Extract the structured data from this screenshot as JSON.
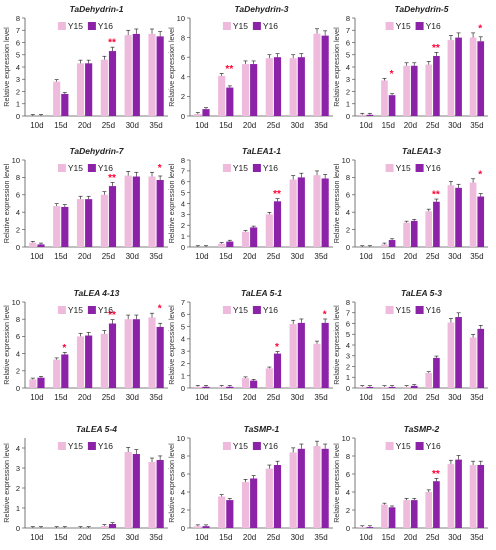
{
  "colors": {
    "y15": "#eebbdd",
    "y16": "#8b22a8",
    "sig": "#ff0033",
    "axis": "#555555"
  },
  "legend": {
    "y15": "Y15",
    "y16": "Y16"
  },
  "chart_data": [
    {
      "type": "bar",
      "title": "TaDehydrin-1",
      "ylabel": "Relative expression level",
      "categories": [
        "10d",
        "15d",
        "20d",
        "25d",
        "30d",
        "35d"
      ],
      "ylim": [
        0,
        8
      ],
      "yticks": [
        0,
        1,
        2,
        3,
        4,
        5,
        6,
        7,
        8
      ],
      "series": [
        {
          "name": "Y15",
          "values": [
            0,
            2.8,
            4.3,
            4.6,
            6.6,
            6.7
          ]
        },
        {
          "name": "Y16",
          "values": [
            0,
            1.8,
            4.3,
            5.3,
            6.7,
            6.5
          ]
        }
      ],
      "significance": [
        {
          "index": 3,
          "label": "**"
        }
      ]
    },
    {
      "type": "bar",
      "title": "TaDehydrin-3",
      "ylabel": "Relative expression level",
      "categories": [
        "10d",
        "15d",
        "20d",
        "25d",
        "30d",
        "35d"
      ],
      "ylim": [
        0,
        10
      ],
      "yticks": [
        0,
        2,
        4,
        6,
        8,
        10
      ],
      "series": [
        {
          "name": "Y15",
          "values": [
            0.2,
            4.1,
            5.3,
            5.9,
            5.9,
            8.4
          ]
        },
        {
          "name": "Y16",
          "values": [
            0.7,
            2.9,
            5.3,
            6.0,
            6.0,
            8.2
          ]
        }
      ],
      "significance": [
        {
          "index": 1,
          "label": "**"
        }
      ]
    },
    {
      "type": "bar",
      "title": "TaDehydrin-5",
      "ylabel": "Relative expression level",
      "categories": [
        "10d",
        "15d",
        "20d",
        "25d",
        "30d",
        "35d"
      ],
      "ylim": [
        0,
        8
      ],
      "yticks": [
        0,
        1,
        2,
        3,
        4,
        5,
        6,
        7,
        8
      ],
      "series": [
        {
          "name": "Y15",
          "values": [
            0.1,
            2.9,
            4.1,
            4.2,
            6.2,
            6.4
          ]
        },
        {
          "name": "Y16",
          "values": [
            0.1,
            1.7,
            4.1,
            4.9,
            6.4,
            6.1
          ]
        }
      ],
      "significance": [
        {
          "index": 1,
          "label": "*"
        },
        {
          "index": 3,
          "label": "**"
        },
        {
          "index": 5,
          "label": "*"
        }
      ]
    },
    {
      "type": "bar",
      "title": "TaDehydrin-7",
      "ylabel": "Relative expression level",
      "categories": [
        "10d",
        "15d",
        "20d",
        "25d",
        "30d",
        "35d"
      ],
      "ylim": [
        0,
        10
      ],
      "yticks": [
        0,
        2,
        4,
        6,
        8,
        10
      ],
      "series": [
        {
          "name": "Y15",
          "values": [
            0.5,
            4.7,
            5.5,
            6.0,
            8.2,
            8.1
          ]
        },
        {
          "name": "Y16",
          "values": [
            0.3,
            4.6,
            5.5,
            7.0,
            8.1,
            7.7
          ]
        }
      ],
      "significance": [
        {
          "index": 3,
          "label": "**"
        },
        {
          "index": 5,
          "label": "*"
        }
      ]
    },
    {
      "type": "bar",
      "title": "TaLEA1-1",
      "ylabel": "Relative expression level",
      "categories": [
        "10d",
        "15d",
        "20d",
        "25d",
        "30d",
        "35d"
      ],
      "ylim": [
        0,
        8
      ],
      "yticks": [
        0,
        1,
        2,
        3,
        4,
        5,
        6,
        7,
        8
      ],
      "series": [
        {
          "name": "Y15",
          "values": [
            0,
            0.3,
            1.4,
            3.0,
            6.2,
            6.6
          ]
        },
        {
          "name": "Y16",
          "values": [
            0,
            0.5,
            1.8,
            4.2,
            6.4,
            6.3
          ]
        }
      ],
      "significance": [
        {
          "index": 3,
          "label": "**"
        }
      ]
    },
    {
      "type": "bar",
      "title": "TaLEA1-3",
      "ylabel": "Relative expression level",
      "categories": [
        "10d",
        "15d",
        "20d",
        "25d",
        "30d",
        "35d"
      ],
      "ylim": [
        0,
        10
      ],
      "yticks": [
        0,
        2,
        4,
        6,
        8,
        10
      ],
      "series": [
        {
          "name": "Y15",
          "values": [
            0,
            0.3,
            2.8,
            4.1,
            7.1,
            7.4
          ]
        },
        {
          "name": "Y16",
          "values": [
            0,
            0.8,
            3.0,
            5.2,
            6.8,
            5.8
          ]
        }
      ],
      "significance": [
        {
          "index": 3,
          "label": "**"
        },
        {
          "index": 5,
          "label": "*"
        }
      ]
    },
    {
      "type": "bar",
      "title": "TaLEA 4-13",
      "ylabel": "Relative expression level",
      "categories": [
        "10d",
        "15d",
        "20d",
        "25d",
        "30d",
        "35d"
      ],
      "ylim": [
        0,
        10
      ],
      "yticks": [
        0,
        2,
        4,
        6,
        8,
        10
      ],
      "series": [
        {
          "name": "Y15",
          "values": [
            1.0,
            3.3,
            6.0,
            6.3,
            8.0,
            8.2
          ]
        },
        {
          "name": "Y16",
          "values": [
            1.2,
            3.9,
            6.1,
            7.5,
            8.0,
            7.1
          ]
        }
      ],
      "significance": [
        {
          "index": 1,
          "label": "*"
        },
        {
          "index": 3,
          "label": "**"
        },
        {
          "index": 5,
          "label": "*"
        }
      ]
    },
    {
      "type": "bar",
      "title": "TaLEA 5-1",
      "ylabel": "Relative expression level",
      "categories": [
        "10d",
        "15d",
        "20d",
        "25d",
        "30d",
        "35d"
      ],
      "ylim": [
        0,
        7
      ],
      "yticks": [
        0,
        1,
        2,
        3,
        4,
        5,
        6,
        7
      ],
      "series": [
        {
          "name": "Y15",
          "values": [
            0.1,
            0.1,
            0.8,
            1.6,
            5.2,
            3.6
          ]
        },
        {
          "name": "Y16",
          "values": [
            0.1,
            0.1,
            0.6,
            2.8,
            5.3,
            5.3
          ]
        }
      ],
      "significance": [
        {
          "index": 3,
          "label": "*"
        },
        {
          "index": 5,
          "label": "*"
        }
      ]
    },
    {
      "type": "bar",
      "title": "TaLEA 5-3",
      "ylabel": "Relative expression level",
      "categories": [
        "10d",
        "15d",
        "20d",
        "25d",
        "30d",
        "35d"
      ],
      "ylim": [
        0,
        8
      ],
      "yticks": [
        0,
        1,
        2,
        3,
        4,
        5,
        6,
        7,
        8
      ],
      "series": [
        {
          "name": "Y15",
          "values": [
            0.1,
            0.1,
            0.1,
            1.4,
            6.1,
            4.7
          ]
        },
        {
          "name": "Y16",
          "values": [
            0.1,
            0.1,
            0.2,
            2.8,
            6.6,
            5.5
          ]
        }
      ],
      "significance": []
    },
    {
      "type": "bar",
      "title": "TaLEA 5-4",
      "ylabel": "Relative expression level",
      "categories": [
        "10d",
        "15d",
        "20d",
        "25d",
        "30d",
        "35d"
      ],
      "ylim": [
        0,
        4.5
      ],
      "yticks": [
        0,
        1,
        2,
        3,
        4
      ],
      "series": [
        {
          "name": "Y15",
          "values": [
            0,
            0,
            0,
            0.1,
            3.8,
            3.3
          ]
        },
        {
          "name": "Y16",
          "values": [
            0,
            0,
            0,
            0.2,
            3.7,
            3.4
          ]
        }
      ],
      "significance": []
    },
    {
      "type": "bar",
      "title": "TaSMP-1",
      "ylabel": "Relative expression level",
      "categories": [
        "10d",
        "15d",
        "20d",
        "25d",
        "30d",
        "35d"
      ],
      "ylim": [
        0,
        10
      ],
      "yticks": [
        0,
        2,
        4,
        6,
        8,
        10
      ],
      "series": [
        {
          "name": "Y15",
          "values": [
            0.2,
            3.5,
            5.1,
            6.6,
            8.4,
            9.1
          ]
        },
        {
          "name": "Y16",
          "values": [
            0.2,
            3.1,
            5.5,
            7.0,
            8.8,
            8.8
          ]
        }
      ],
      "significance": []
    },
    {
      "type": "bar",
      "title": "TaSMP-2",
      "ylabel": "Relative expression level",
      "categories": [
        "10d",
        "15d",
        "20d",
        "25d",
        "30d",
        "35d"
      ],
      "ylim": [
        0,
        10
      ],
      "yticks": [
        0,
        2,
        4,
        6,
        8,
        10
      ],
      "series": [
        {
          "name": "Y15",
          "values": [
            0.1,
            2.6,
            3.1,
            4.0,
            7.1,
            7.0
          ]
        },
        {
          "name": "Y16",
          "values": [
            0.1,
            2.3,
            3.1,
            5.2,
            7.6,
            7.0
          ]
        }
      ],
      "significance": [
        {
          "index": 3,
          "label": "**"
        }
      ]
    }
  ]
}
